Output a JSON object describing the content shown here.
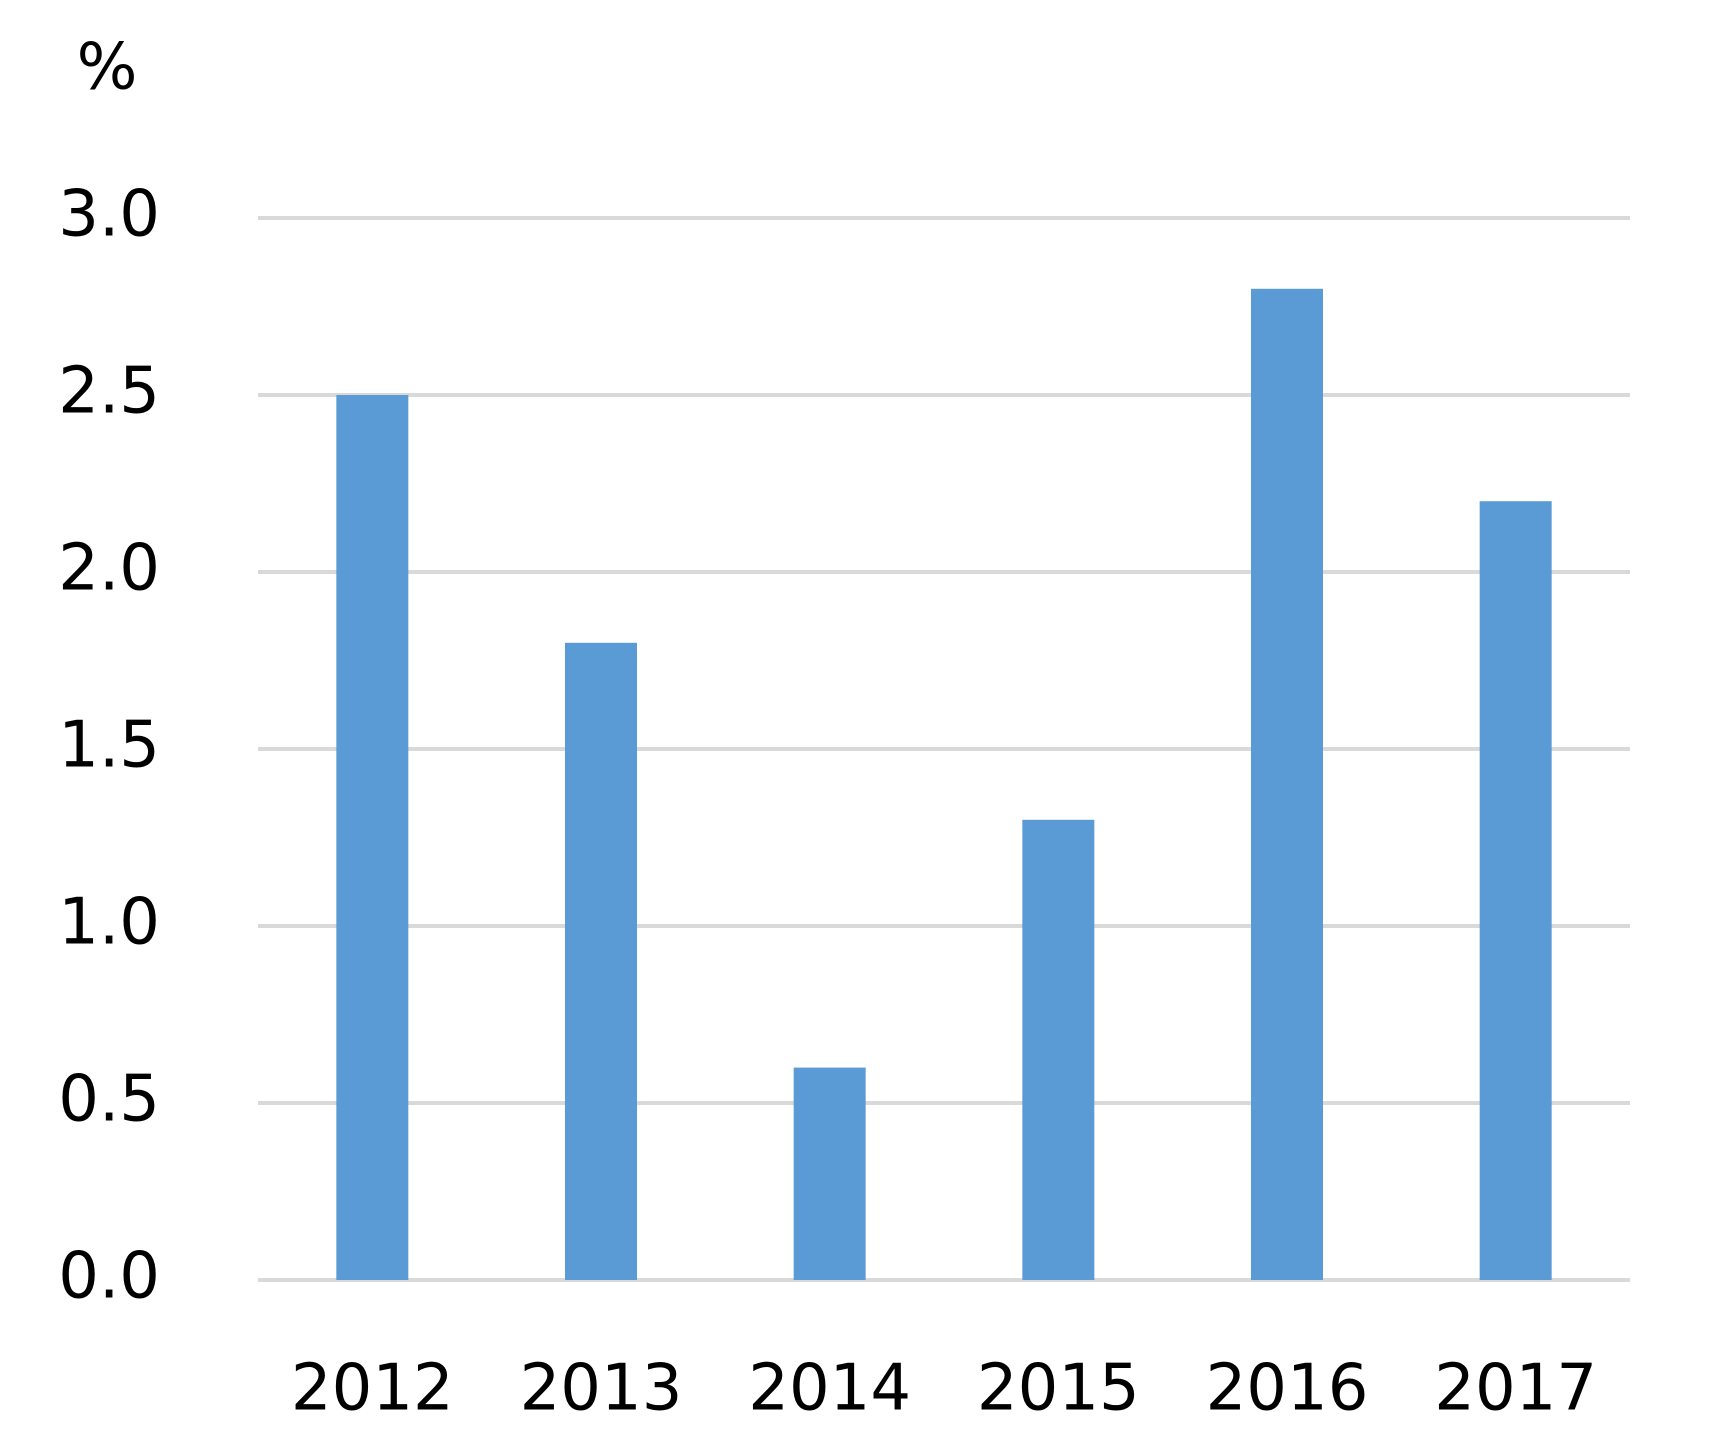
{
  "chart_data": {
    "type": "bar",
    "y_label": "%",
    "categories": [
      "2012",
      "2013",
      "2014",
      "2015",
      "2016",
      "2017"
    ],
    "values": [
      2.5,
      1.8,
      0.6,
      1.3,
      2.8,
      2.2
    ],
    "color": "#5b9bd5",
    "ylim": [
      0,
      3
    ],
    "yticks": [
      {
        "value": 0,
        "label": "0.0"
      },
      {
        "value": 0.5,
        "label": "0.5"
      },
      {
        "value": 1,
        "label": "1.0"
      },
      {
        "value": 1.5,
        "label": "1.5"
      },
      {
        "value": 2,
        "label": "2.0"
      },
      {
        "value": 2.5,
        "label": "2.5"
      },
      {
        "value": 3,
        "label": "3.0"
      }
    ],
    "grid": true
  }
}
